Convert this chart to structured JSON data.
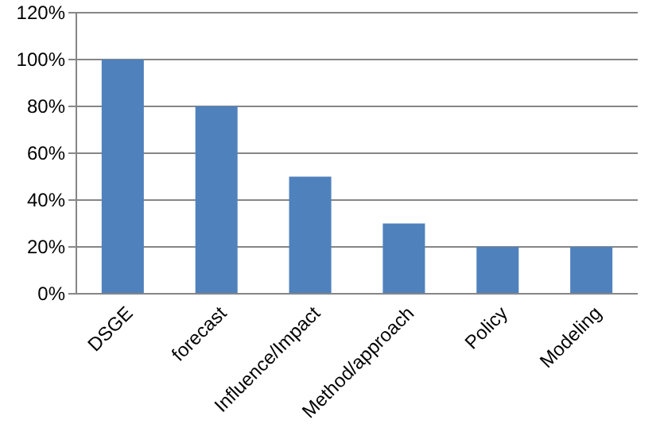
{
  "chart_data": {
    "type": "bar",
    "categories": [
      "DSGE",
      "forecast",
      "Influence/Impact",
      "Method/approach",
      "Policy",
      "Modeling"
    ],
    "values": [
      100,
      80,
      50,
      30,
      20,
      20
    ],
    "color": "#4f81bd",
    "ylim": [
      0,
      120
    ],
    "yticks": [
      {
        "value": 0,
        "label": "0%"
      },
      {
        "value": 20,
        "label": "20%"
      },
      {
        "value": 40,
        "label": "40%"
      },
      {
        "value": 60,
        "label": "60%"
      },
      {
        "value": 80,
        "label": "80%"
      },
      {
        "value": 100,
        "label": "100%"
      },
      {
        "value": 120,
        "label": "120%"
      }
    ],
    "grid": "y"
  }
}
